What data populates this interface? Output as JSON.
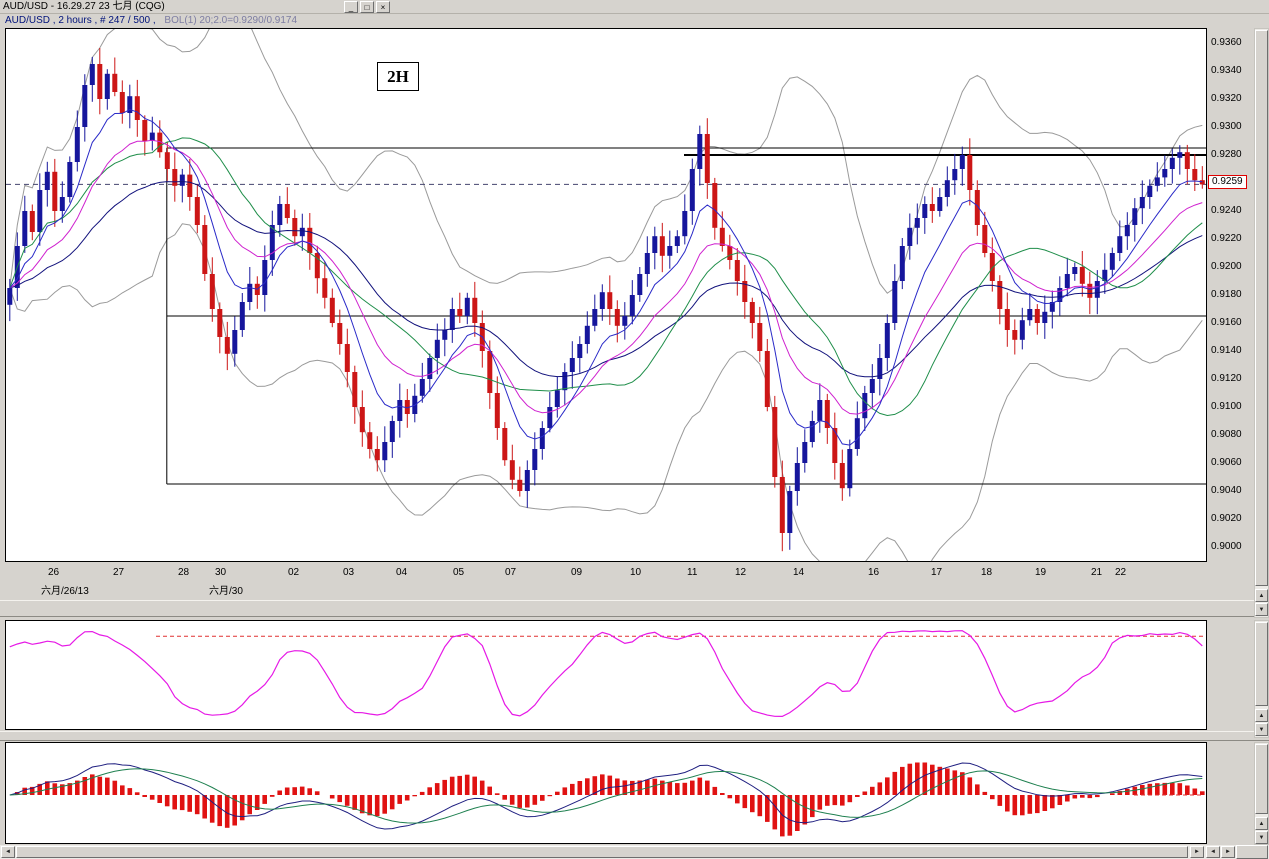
{
  "window": {
    "title": "AUD/USD - 16.29.27  23 七月 (CQG)"
  },
  "icons": {
    "minimize": "_",
    "restore": "□",
    "close": "×",
    "up": "▲",
    "down": "▼",
    "left": "◄",
    "right": "►"
  },
  "header": {
    "instrument": "AUD/USD , 2 hours , # 247 / 500 ,",
    "study": "BOL(1) 20;2.0=0.9290/0.9174"
  },
  "chart_data": {
    "type": "candlestick",
    "symbol": "AUD/USD",
    "interval_label": "2H",
    "bars_count_label": "# 247 / 500",
    "last_price": 0.9259,
    "last_price_label": "0.9259",
    "y_axis": {
      "top_price": 0.937,
      "bottom_price": 0.899,
      "tick_step": 0.002,
      "ticks": [
        "0.9360",
        "0.9340",
        "0.9320",
        "0.9300",
        "0.9280",
        "0.9260",
        "0.9240",
        "0.9220",
        "0.9200",
        "0.9180",
        "0.9160",
        "0.9140",
        "0.9120",
        "0.9100",
        "0.9080",
        "0.9060",
        "0.9040",
        "0.9020",
        "0.9000"
      ]
    },
    "x_axis": {
      "labels": [
        {
          "text": "26",
          "f": 0.041
        },
        {
          "text": "27",
          "f": 0.095
        },
        {
          "text": "28",
          "f": 0.149
        },
        {
          "text": "30",
          "f": 0.18
        },
        {
          "text": "02",
          "f": 0.241
        },
        {
          "text": "03",
          "f": 0.287
        },
        {
          "text": "04",
          "f": 0.331
        },
        {
          "text": "05",
          "f": 0.378
        },
        {
          "text": "07",
          "f": 0.422
        },
        {
          "text": "09",
          "f": 0.477
        },
        {
          "text": "10",
          "f": 0.526
        },
        {
          "text": "11",
          "f": 0.573
        },
        {
          "text": "12",
          "f": 0.613
        },
        {
          "text": "14",
          "f": 0.662
        },
        {
          "text": "16",
          "f": 0.724
        },
        {
          "text": "17",
          "f": 0.777
        },
        {
          "text": "18",
          "f": 0.818
        },
        {
          "text": "19",
          "f": 0.863
        },
        {
          "text": "21",
          "f": 0.91
        },
        {
          "text": "22",
          "f": 0.93
        }
      ],
      "sub_labels": [
        {
          "text": "六月/26/13",
          "f": 0.03
        },
        {
          "text": "六月/30",
          "f": 0.17
        }
      ]
    },
    "closes": [
      0.9185,
      0.9215,
      0.924,
      0.9225,
      0.9255,
      0.9268,
      0.924,
      0.925,
      0.9275,
      0.93,
      0.933,
      0.9345,
      0.932,
      0.9338,
      0.9325,
      0.931,
      0.9322,
      0.9305,
      0.929,
      0.9296,
      0.9282,
      0.927,
      0.9258,
      0.9266,
      0.925,
      0.923,
      0.9195,
      0.917,
      0.915,
      0.9138,
      0.9155,
      0.9175,
      0.9188,
      0.918,
      0.9205,
      0.923,
      0.9245,
      0.9235,
      0.9222,
      0.9228,
      0.921,
      0.9192,
      0.9178,
      0.916,
      0.9145,
      0.9125,
      0.91,
      0.9082,
      0.907,
      0.9062,
      0.9075,
      0.909,
      0.9105,
      0.9095,
      0.9108,
      0.912,
      0.9135,
      0.9148,
      0.9155,
      0.917,
      0.9165,
      0.9178,
      0.916,
      0.914,
      0.911,
      0.9085,
      0.9062,
      0.9048,
      0.904,
      0.9055,
      0.907,
      0.9085,
      0.91,
      0.9112,
      0.9125,
      0.9135,
      0.9145,
      0.9158,
      0.917,
      0.9182,
      0.917,
      0.9158,
      0.9165,
      0.918,
      0.9195,
      0.921,
      0.9222,
      0.9208,
      0.9215,
      0.9222,
      0.924,
      0.927,
      0.9295,
      0.926,
      0.9228,
      0.9215,
      0.9205,
      0.919,
      0.9175,
      0.916,
      0.914,
      0.91,
      0.905,
      0.901,
      0.904,
      0.906,
      0.9075,
      0.909,
      0.9105,
      0.9085,
      0.906,
      0.9042,
      0.907,
      0.9092,
      0.911,
      0.912,
      0.9135,
      0.916,
      0.919,
      0.9215,
      0.9228,
      0.9235,
      0.9245,
      0.924,
      0.925,
      0.9262,
      0.927,
      0.928,
      0.9255,
      0.923,
      0.921,
      0.919,
      0.917,
      0.9155,
      0.9148,
      0.9162,
      0.917,
      0.916,
      0.9168,
      0.9175,
      0.9185,
      0.9195,
      0.92,
      0.9188,
      0.9178,
      0.919,
      0.9198,
      0.921,
      0.9222,
      0.923,
      0.9242,
      0.925,
      0.9258,
      0.9264,
      0.927,
      0.9278,
      0.9282,
      0.927,
      0.9262,
      0.9259
    ],
    "wick_overrides": {
      "11": {
        "high": 0.935
      },
      "49": {
        "low": 0.9054
      },
      "68": {
        "low": 0.9036
      },
      "92": {
        "high": 0.9301
      },
      "103": {
        "low": 0.8997
      },
      "111": {
        "low": 0.9033
      },
      "127": {
        "high": 0.9286
      },
      "156": {
        "high": 0.9287
      }
    },
    "levels": [
      {
        "price": 0.9285,
        "from_f": 0.134,
        "width": 1
      },
      {
        "price": 0.928,
        "from_f": 0.565,
        "width": 2
      },
      {
        "price": 0.9165,
        "from_f": 0.134,
        "width": 1
      },
      {
        "price": 0.9045,
        "from_f": 0.134,
        "width": 1
      }
    ],
    "level_vertical": {
      "x_f": 0.134,
      "top_price": 0.9285,
      "bottom_price": 0.9045
    },
    "overlays": {
      "bollinger": {
        "period": 20,
        "stdev": 2.0,
        "last_upper": 0.929,
        "last_lower": 0.9174
      },
      "moving_averages": [
        {
          "type": "ema",
          "period": 8
        },
        {
          "type": "ema",
          "period": 16
        },
        {
          "type": "sma",
          "period": 20
        },
        {
          "type": "ema",
          "period": 34
        }
      ]
    },
    "lower_panels": [
      {
        "name": "oscillator",
        "type": "stochastic",
        "period": 14,
        "smooth": 3,
        "upper_threshold": 90
      },
      {
        "name": "macd",
        "fast": 12,
        "slow": 26,
        "signal": 9
      }
    ]
  },
  "colors": {
    "up_candle": "#16169c",
    "down_candle": "#cc1616",
    "bollinger": "#9a9a9a",
    "ma_fast": "#2a2ac8",
    "ma_mid": "#cf22cf",
    "ma_sma": "#1f8e4a",
    "ma_slow": "#12127c",
    "last_price_line": "#44446e",
    "level_line": "#000000",
    "last_price_border": "#e00000",
    "oscillator": "#e619e6",
    "threshold": "#e03030",
    "macd_bar": "#e01212",
    "macd_line": "#1f1f80",
    "macd_signal": "#1f8050"
  }
}
